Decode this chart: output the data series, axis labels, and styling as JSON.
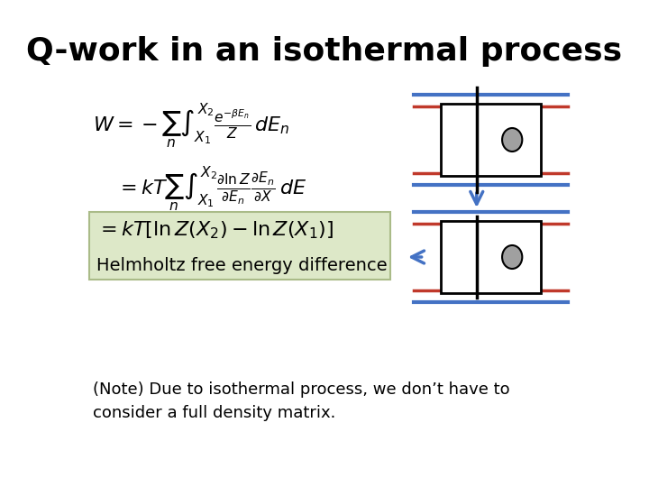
{
  "title": "Q-work in an isothermal process",
  "title_fontsize": 26,
  "title_font": "DejaVu Sans",
  "bg_color": "#ffffff",
  "eq1": "W = -\\sum_{n}\\int_{X_1}^{X_2} \\frac{e^{-\\beta E_n}}{Z}\\, dE_n",
  "eq2": "= kT\\sum_{n}\\int_{X_1}^{X_2} \\frac{\\partial \\ln Z}{\\partial E_n} \\frac{\\partial E_n}{\\partial X}\\, dE",
  "eq3": "= kT\\left[\\ln Z(X_2) - \\ln Z(X_1)\\right]",
  "helmholtz_label": "Helmholtz free energy difference",
  "note_text": "(Note) Due to isothermal process, we don’t have to\nconsider a full density matrix.",
  "highlight_color": "#dde8c8",
  "highlight_border": "#aabb88",
  "blue_line_color": "#4472c4",
  "red_line_color": "#c0392b",
  "black_color": "#000000",
  "arrow_color": "#4472c4",
  "circle_color": "#888888",
  "eq_fontsize": 16,
  "label_fontsize": 14,
  "note_fontsize": 13
}
